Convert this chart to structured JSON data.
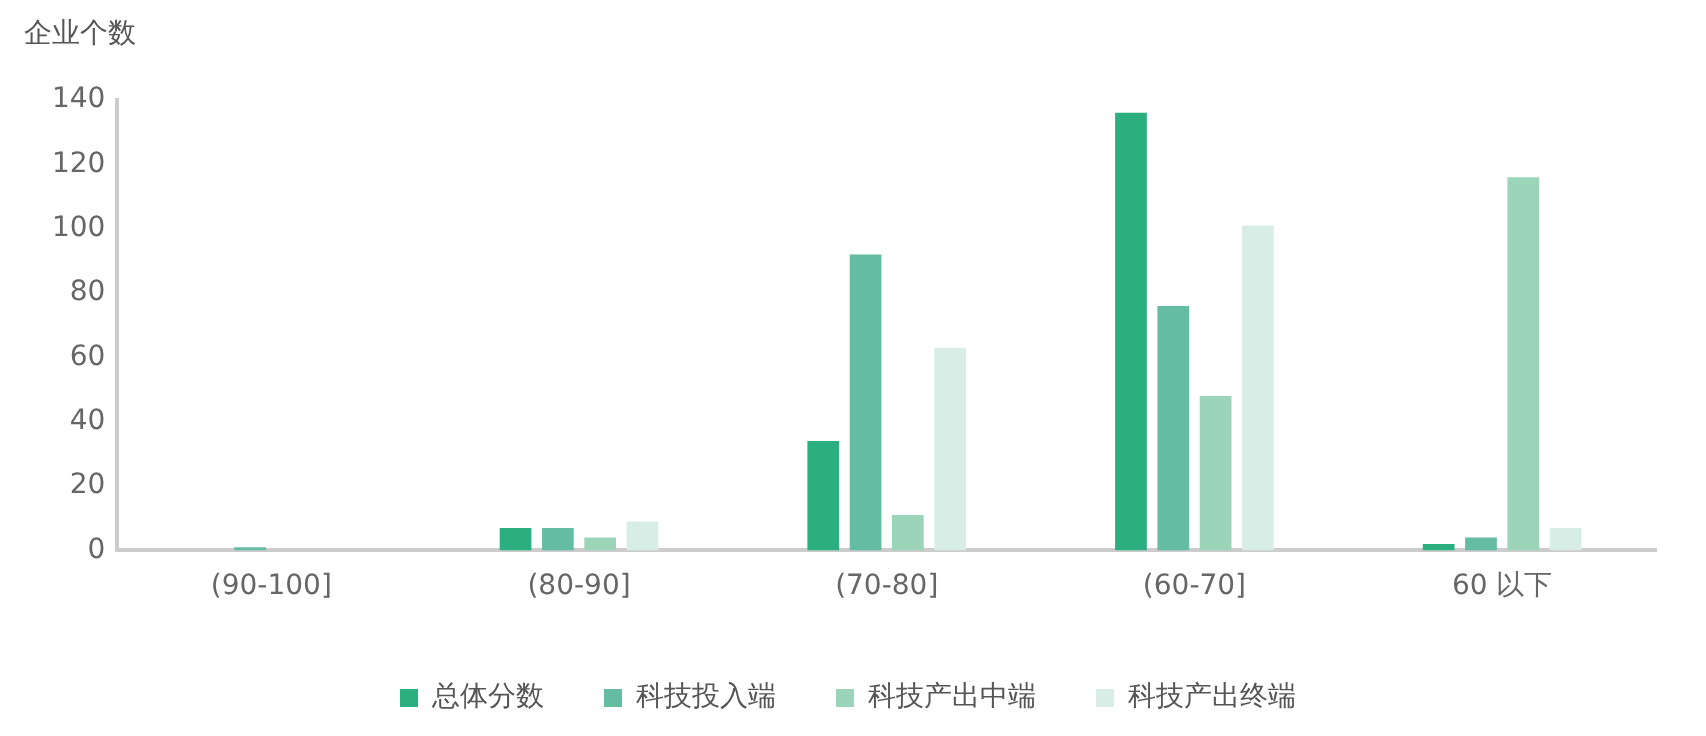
{
  "chart_data": {
    "type": "bar",
    "ylabel": "企业个数",
    "categories": [
      "(90-100]",
      "(80-90]",
      "(70-80]",
      "(60-70]",
      "60 以下"
    ],
    "series": [
      {
        "name": "总体分数",
        "color": "#2baf80",
        "values": [
          0,
          7,
          34,
          136,
          2
        ]
      },
      {
        "name": "科技投入端",
        "color": "#64bca2",
        "values": [
          1,
          7,
          92,
          76,
          4
        ]
      },
      {
        "name": "科技产出中端",
        "color": "#9cd4b9",
        "values": [
          0,
          4,
          11,
          48,
          116
        ]
      },
      {
        "name": "科技产出终端",
        "color": "#d8ede6",
        "values": [
          0,
          9,
          63,
          101,
          7
        ]
      }
    ],
    "ylim": [
      0,
      140
    ],
    "yticks": [
      0,
      20,
      40,
      60,
      80,
      100,
      120,
      140
    ],
    "grid": false,
    "legend": "bottom"
  }
}
